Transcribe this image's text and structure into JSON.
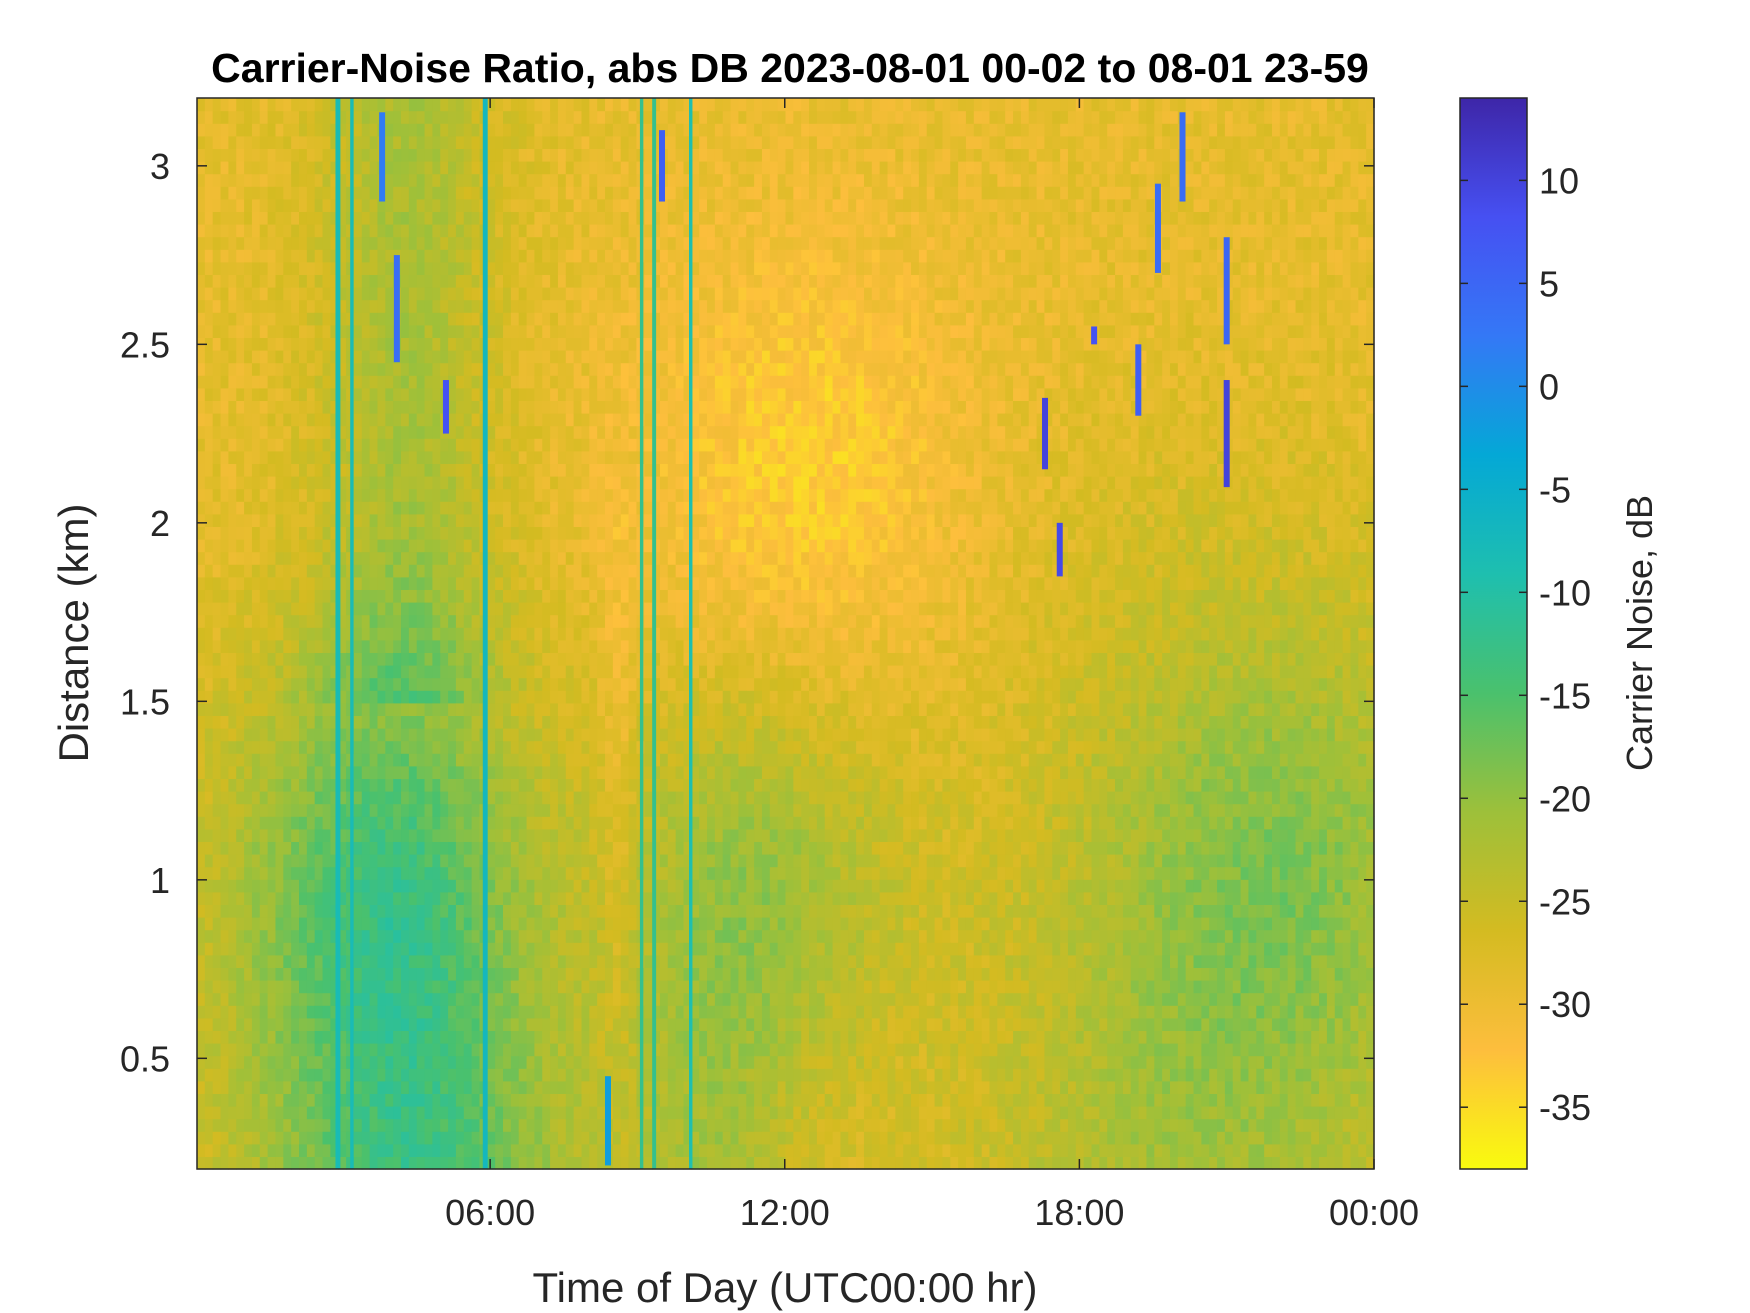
{
  "chart_data": {
    "type": "heatmap",
    "title": "Carrier-Noise Ratio, abs DB 2023-08-01 00-02 to 08-01 23-59",
    "xlabel": "Time of Day (UTC00:00 hr)",
    "ylabel": "Distance (km)",
    "x_unit": "hour",
    "xlim": [
      0.03,
      24
    ],
    "ylim": [
      0.19,
      3.19
    ],
    "x_ticks": [
      6,
      12,
      18,
      24
    ],
    "x_tick_labels": [
      "06:00",
      "12:00",
      "18:00",
      "00:00"
    ],
    "y_ticks": [
      0.5,
      1,
      1.5,
      2,
      2.5,
      3
    ],
    "y_tick_labels": [
      "0.5",
      "1",
      "1.5",
      "2",
      "2.5",
      "3"
    ],
    "colorbar": {
      "label": "Carrier Noise, dB",
      "range": [
        -38,
        14
      ],
      "ticks": [
        10,
        5,
        0,
        -5,
        -10,
        -15,
        -20,
        -25,
        -30,
        -35
      ],
      "tick_labels": [
        "10",
        "5",
        "0",
        "-5",
        "-10",
        "-15",
        "-20",
        "-25",
        "-30",
        "-35"
      ],
      "colormap": [
        "#f9fb0e",
        "#fdbe3d",
        "#d4bb21",
        "#9dc03a",
        "#4ac16d",
        "#1ebfaf",
        "#04a8d6",
        "#3478f6",
        "#4650f2",
        "#3e26a8"
      ]
    },
    "grid": false,
    "legend": "none",
    "bands": {
      "note": "approximate carrier-noise values (dB) by time of day (hours) and distance (km)",
      "vertical_stripes": [
        {
          "x_start": 2.85,
          "x_end": 2.95,
          "value": -8
        },
        {
          "x_start": 3.15,
          "x_end": 3.22,
          "value": -8
        },
        {
          "x_start": 5.85,
          "x_end": 5.95,
          "value": -7
        },
        {
          "x_start": 9.05,
          "x_end": 9.12,
          "value": -12
        },
        {
          "x_start": 9.3,
          "x_end": 9.38,
          "value": -12
        },
        {
          "x_start": 10.05,
          "x_end": 10.12,
          "value": -9
        }
      ],
      "high_value_streaks": [
        {
          "x": 3.8,
          "y_range": [
            2.9,
            3.15
          ],
          "value": 2
        },
        {
          "x": 4.1,
          "y_range": [
            2.45,
            2.75
          ],
          "value": 4
        },
        {
          "x": 5.1,
          "y_range": [
            2.25,
            2.4
          ],
          "value": 8
        },
        {
          "x": 9.5,
          "y_range": [
            2.9,
            3.1
          ],
          "value": 6
        },
        {
          "x": 8.4,
          "y_range": [
            0.2,
            0.45
          ],
          "value": -2
        },
        {
          "x": 17.3,
          "y_range": [
            2.15,
            2.35
          ],
          "value": 10
        },
        {
          "x": 17.6,
          "y_range": [
            1.85,
            2.0
          ],
          "value": 9
        },
        {
          "x": 18.3,
          "y_range": [
            2.5,
            2.55
          ],
          "value": 8
        },
        {
          "x": 19.2,
          "y_range": [
            2.3,
            2.5
          ],
          "value": 6
        },
        {
          "x": 19.6,
          "y_range": [
            2.7,
            2.95
          ],
          "value": 4
        },
        {
          "x": 20.1,
          "y_range": [
            2.9,
            3.15
          ],
          "value": 4
        },
        {
          "x": 21.0,
          "y_range": [
            2.1,
            2.4
          ],
          "value": 10
        },
        {
          "x": 21.0,
          "y_range": [
            2.5,
            2.8
          ],
          "value": 5
        }
      ]
    }
  }
}
